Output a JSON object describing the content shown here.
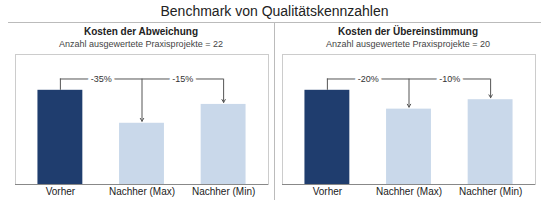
{
  "chart_data": [
    {
      "type": "bar",
      "title": "Benchmark von Qualitätskennzahlen",
      "subtitle": "Kosten der Abweichung",
      "note": "Anzahl ausgewertete Praxisprojekte = 22",
      "categories": [
        "Vorher",
        "Nachher (Max)",
        "Nachher (Min)"
      ],
      "values": [
        1.0,
        0.65,
        0.85
      ],
      "colors": [
        "#1f3d6e",
        "#c9d8ea",
        "#c9d8ea"
      ],
      "annotations": [
        "-35%",
        "-15%"
      ],
      "ylim": [
        0,
        1.38
      ],
      "tick_labels": "x"
    },
    {
      "type": "bar",
      "subtitle": "Kosten der Übereinstimmung",
      "note": "Anzahl ausgewertete Praxisprojekte = 20",
      "categories": [
        "Vorher",
        "Nachher (Max)",
        "Nachher (Min)"
      ],
      "values": [
        1.0,
        0.8,
        0.9
      ],
      "colors": [
        "#1f3d6e",
        "#c9d8ea",
        "#c9d8ea"
      ],
      "annotations": [
        "-20%",
        "-10%"
      ],
      "ylim": [
        0,
        1.38
      ],
      "tick_labels": "x"
    }
  ]
}
